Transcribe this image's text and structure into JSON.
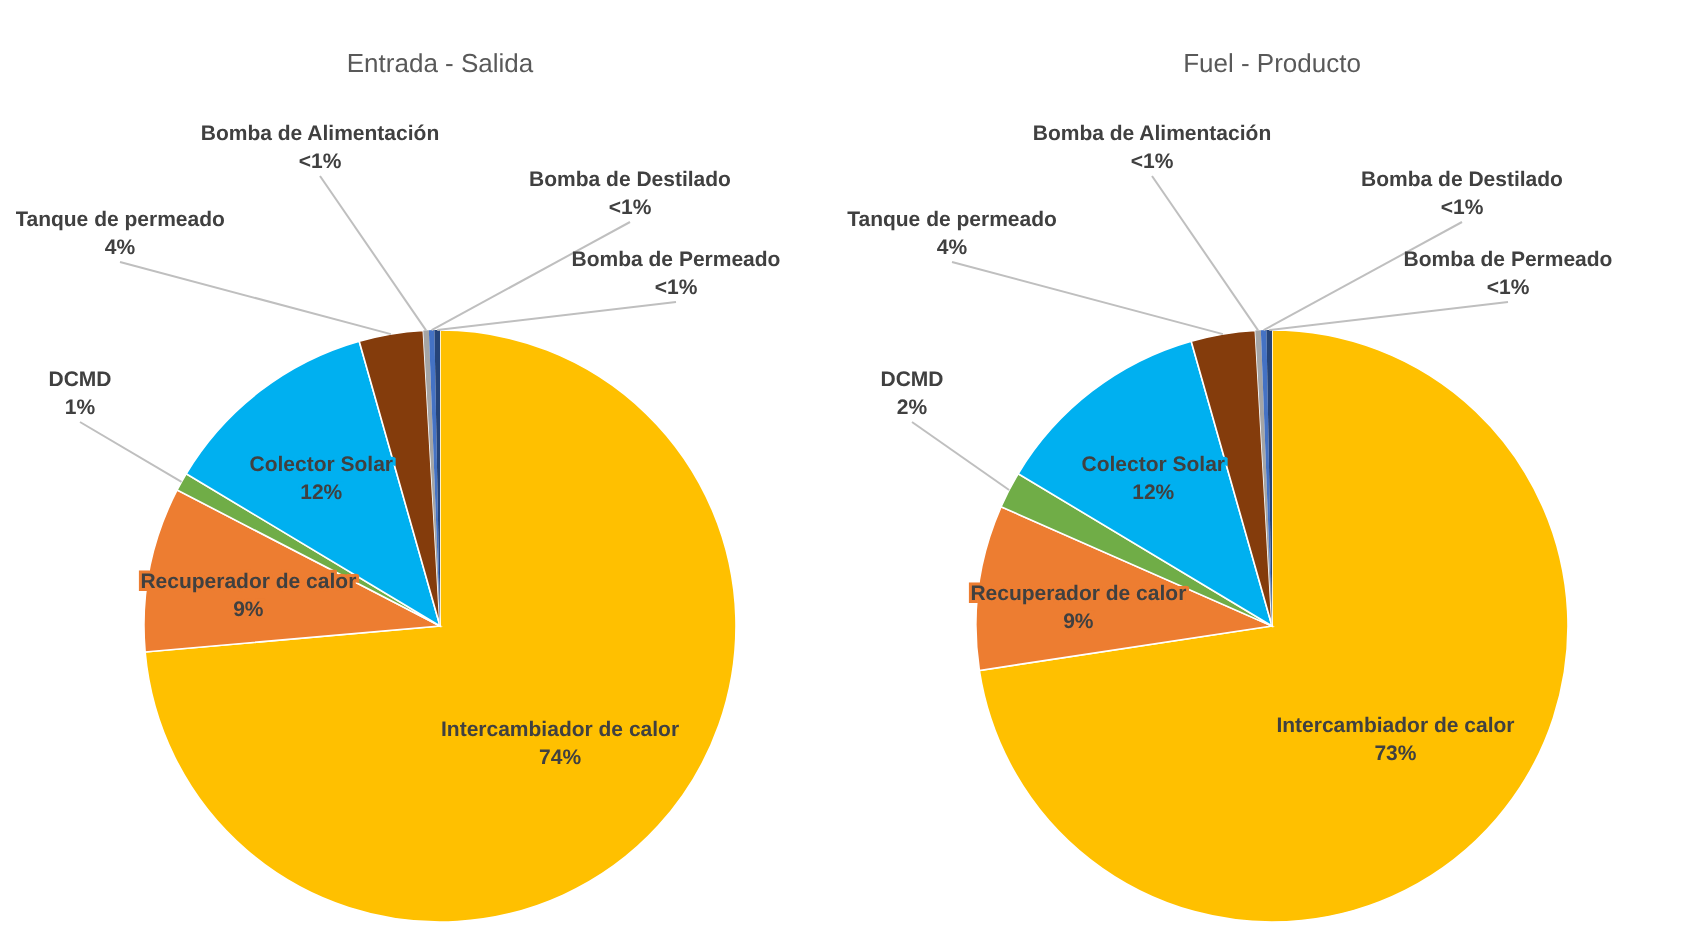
{
  "chart_data": [
    {
      "type": "pie",
      "title": "Entrada - Salida",
      "categories": [
        "Intercambiador de calor",
        "Recuperador de calor",
        "DCMD",
        "Colector Solar",
        "Tanque de permeado",
        "Bomba de Alimentación",
        "Bomba de Destilado",
        "Bomba de Permeado"
      ],
      "values": [
        73.6,
        9,
        1,
        12,
        3.5,
        0.3,
        0.3,
        0.3
      ],
      "colors": [
        "#ffc000",
        "#ed7d31",
        "#70ad47",
        "#00b0f0",
        "#843c0c",
        "#a5a5a5",
        "#4472c4",
        "#264478"
      ],
      "value_labels": [
        "74%",
        "9%",
        "1%",
        "12%",
        "4%",
        "<1%",
        "<1%",
        "<1%"
      ]
    },
    {
      "type": "pie",
      "title": "Fuel - Producto",
      "categories": [
        "Intercambiador de calor",
        "Recuperador de calor",
        "DCMD",
        "Colector Solar",
        "Tanque de permeado",
        "Bomba de Alimentación",
        "Bomba de Destilado",
        "Bomba de Permeado"
      ],
      "values": [
        72.6,
        9,
        2,
        12,
        3.5,
        0.3,
        0.3,
        0.3
      ],
      "colors": [
        "#ffc000",
        "#ed7d31",
        "#70ad47",
        "#00b0f0",
        "#843c0c",
        "#a5a5a5",
        "#4472c4",
        "#264478"
      ],
      "value_labels": [
        "73%",
        "9%",
        "2%",
        "12%",
        "4%",
        "<1%",
        "<1%",
        "<1%"
      ]
    }
  ]
}
